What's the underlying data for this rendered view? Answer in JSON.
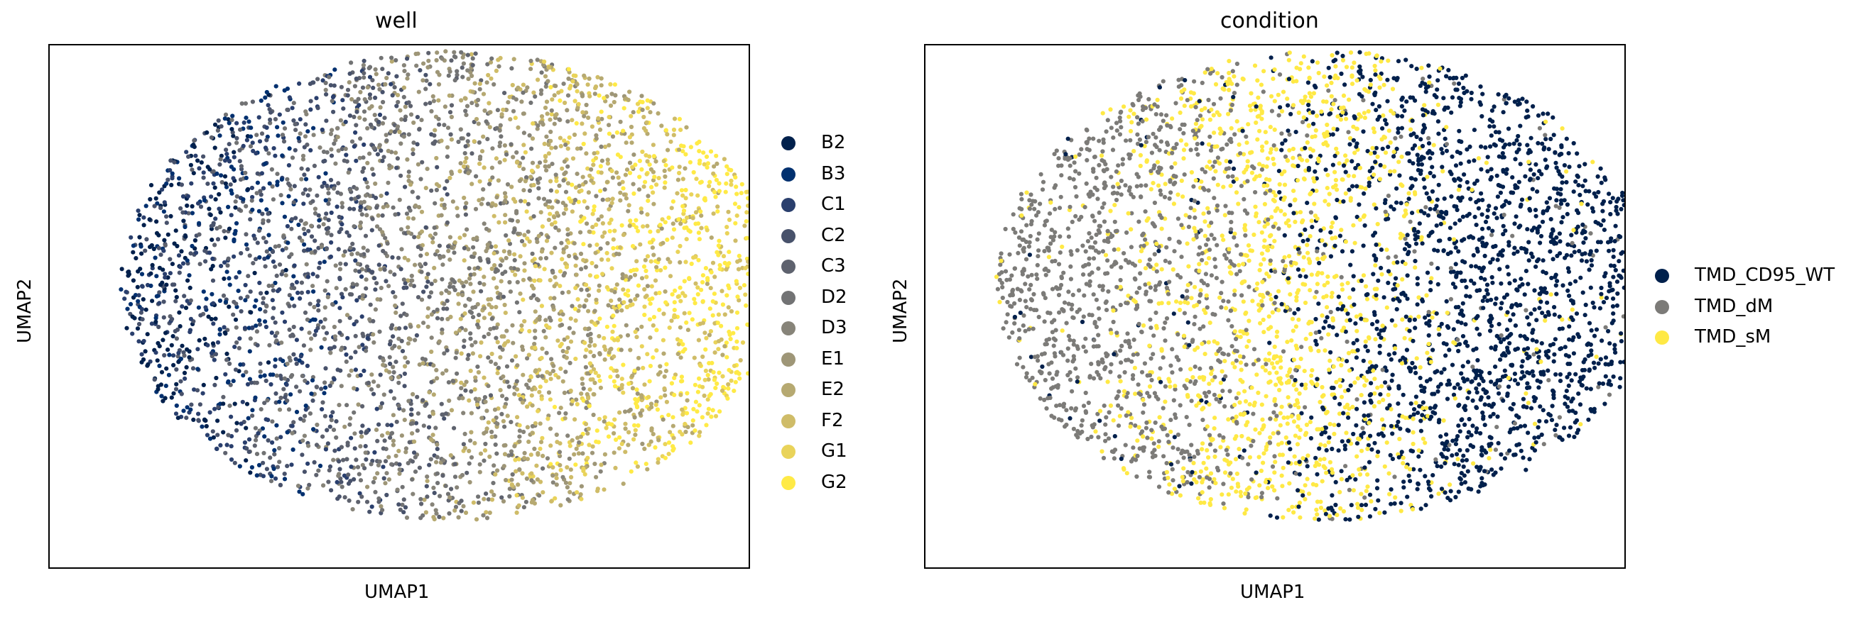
{
  "chart_data": [
    {
      "type": "scatter",
      "title": "well",
      "xlabel": "UMAP1",
      "ylabel": "UMAP2",
      "grid": false,
      "legend_position": "right",
      "categories": [
        "B2",
        "B3",
        "C1",
        "C2",
        "C3",
        "D2",
        "D3",
        "E1",
        "E2",
        "F2",
        "G1",
        "G2"
      ],
      "colors": [
        "#00204c",
        "#00306f",
        "#2a3f6d",
        "#48526b",
        "#5e626e",
        "#727374",
        "#878479",
        "#9e9677",
        "#b6a971",
        "#cfbc68",
        "#e9d35a",
        "#ffea46"
      ]
    },
    {
      "type": "scatter",
      "title": "condition",
      "xlabel": "UMAP1",
      "ylabel": "UMAP2",
      "grid": false,
      "legend_position": "right",
      "categories": [
        "TMD_CD95_WT",
        "TMD_dM",
        "TMD_sM"
      ],
      "colors": [
        "#00204c",
        "#7c7b78",
        "#ffe945"
      ]
    }
  ]
}
